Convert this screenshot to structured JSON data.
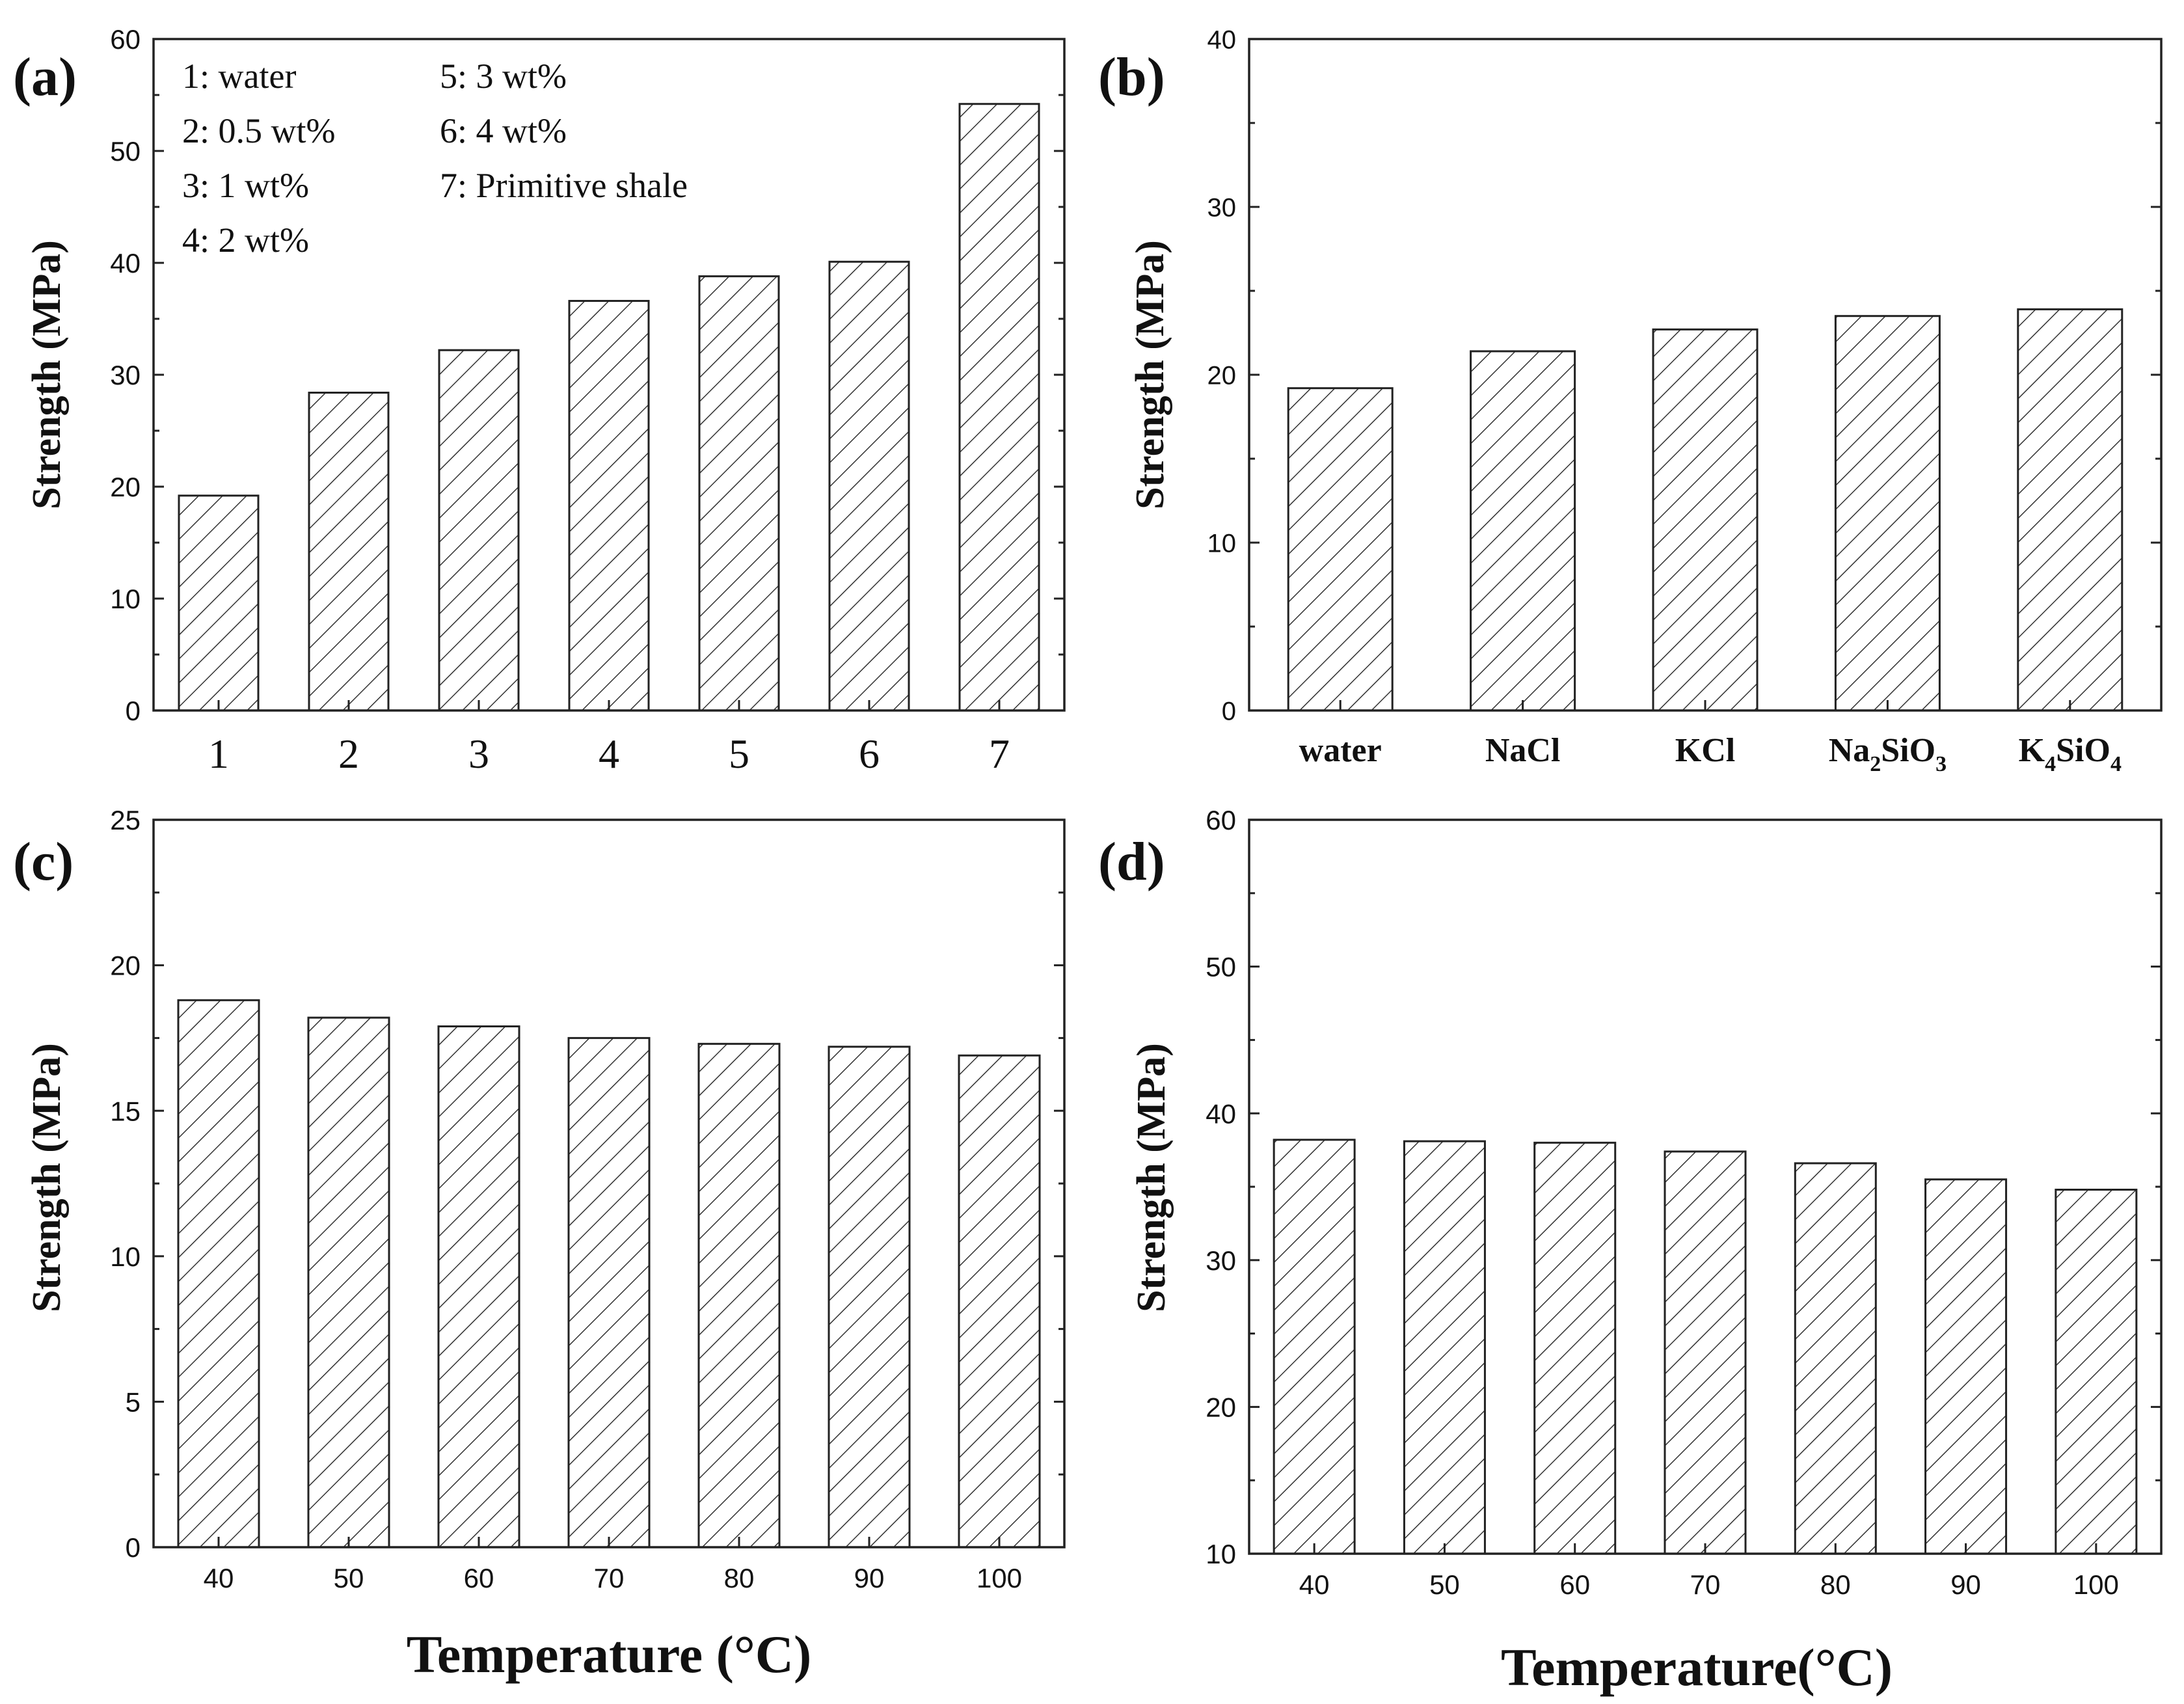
{
  "chart_data": [
    {
      "panel_label": "(a)",
      "type": "bar",
      "categories": [
        "1",
        "2",
        "3",
        "4",
        "5",
        "6",
        "7"
      ],
      "values": [
        19.2,
        28.4,
        32.2,
        36.6,
        38.8,
        40.1,
        54.2
      ],
      "ylabel": "Strength (MPa)",
      "xlabel": "",
      "ylim": [
        0,
        60
      ],
      "yticks": [
        "0",
        "10",
        "20",
        "30",
        "40",
        "50",
        "60"
      ],
      "legend": [
        "1: water",
        "2: 0.5 wt%",
        "3: 1 wt%",
        "4: 2 wt%",
        "5: 3 wt%",
        "6: 4 wt%",
        "7: Primitive shale"
      ]
    },
    {
      "panel_label": "(b)",
      "type": "bar",
      "categories": [
        "water",
        "NaCl",
        "KCl",
        "Na2SiO3",
        "K4SiO4"
      ],
      "values": [
        19.2,
        21.4,
        22.7,
        23.5,
        23.9
      ],
      "ylabel": "Strength (MPa)",
      "xlabel": "",
      "ylim": [
        0,
        40
      ],
      "yticks": [
        "0",
        "10",
        "20",
        "30",
        "40"
      ]
    },
    {
      "panel_label": "(c)",
      "type": "bar",
      "categories": [
        "40",
        "50",
        "60",
        "70",
        "80",
        "90",
        "100"
      ],
      "values": [
        18.8,
        18.2,
        17.9,
        17.5,
        17.3,
        17.2,
        16.9
      ],
      "ylabel": "Strength (MPa)",
      "xlabel": "Temperature (°C)",
      "ylim": [
        0,
        25
      ],
      "yticks": [
        "0",
        "5",
        "10",
        "15",
        "20",
        "25"
      ]
    },
    {
      "panel_label": "(d)",
      "type": "bar",
      "categories": [
        "40",
        "50",
        "60",
        "70",
        "80",
        "90",
        "100"
      ],
      "values": [
        38.2,
        38.1,
        38.0,
        37.4,
        36.6,
        35.5,
        34.8
      ],
      "ylabel": "Strength (MPa)",
      "xlabel": "Temperature(°C)",
      "ylim": [
        10,
        60
      ],
      "yticks": [
        "10",
        "20",
        "30",
        "40",
        "50",
        "60"
      ]
    }
  ]
}
